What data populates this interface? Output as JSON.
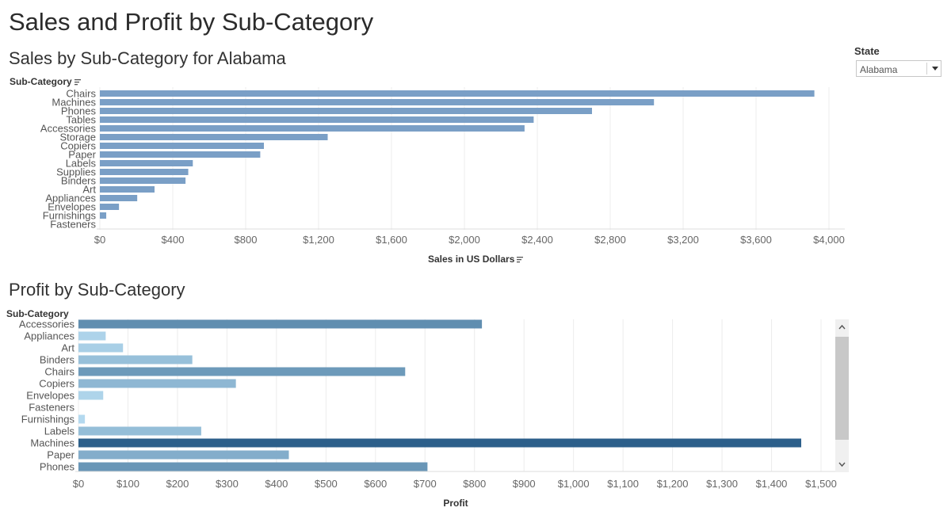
{
  "dashboard": {
    "title": "Sales and Profit by Sub-Category"
  },
  "filter": {
    "label": "State",
    "selected": "Alabama",
    "arrow_icon": "dropdown-arrow-icon"
  },
  "sales_chart": {
    "title": "Sales by Sub-Category for Alabama",
    "row_header": "Sub-Category",
    "xlabel": "Sales in US Dollars",
    "sort_icon": "sort-icon",
    "bar_color": "#7a9fc6"
  },
  "profit_chart": {
    "title": "Profit by Sub-Category",
    "row_header": "Sub-Category",
    "xlabel": "Profit",
    "colors": {
      "low": "#b7dcf1",
      "high": "#2c5f8a"
    }
  },
  "scrollbar": {
    "up_icon": "chevron-up-icon",
    "down_icon": "chevron-down-icon"
  },
  "chart_data": [
    {
      "type": "bar",
      "orientation": "horizontal",
      "title": "Sales by Sub-Category for Alabama",
      "xlabel": "Sales in US Dollars",
      "ylabel": "Sub-Category",
      "categories": [
        "Chairs",
        "Machines",
        "Phones",
        "Tables",
        "Accessories",
        "Storage",
        "Copiers",
        "Paper",
        "Labels",
        "Supplies",
        "Binders",
        "Art",
        "Appliances",
        "Envelopes",
        "Furnishings",
        "Fasteners"
      ],
      "values": [
        3920,
        3040,
        2700,
        2380,
        2330,
        1250,
        900,
        880,
        510,
        485,
        470,
        300,
        205,
        105,
        35,
        0
      ],
      "xlim": [
        0,
        4000
      ],
      "ticks": [
        0,
        400,
        800,
        1200,
        1600,
        2000,
        2400,
        2800,
        3200,
        3600,
        4000
      ],
      "tick_labels": [
        "$0",
        "$400",
        "$800",
        "$1,200",
        "$1,600",
        "$2,000",
        "$2,400",
        "$2,800",
        "$3,200",
        "$3,600",
        "$4,000"
      ],
      "grid": true,
      "legend": "none"
    },
    {
      "type": "bar",
      "orientation": "horizontal",
      "title": "Profit by Sub-Category",
      "xlabel": "Profit",
      "ylabel": "Sub-Category",
      "categories": [
        "Accessories",
        "Appliances",
        "Art",
        "Binders",
        "Chairs",
        "Copiers",
        "Envelopes",
        "Fasteners",
        "Furnishings",
        "Labels",
        "Machines",
        "Paper",
        "Phones"
      ],
      "values": [
        815,
        55,
        90,
        230,
        660,
        318,
        50,
        0,
        13,
        248,
        1460,
        425,
        705
      ],
      "xlim": [
        0,
        1500
      ],
      "ticks": [
        0,
        100,
        200,
        300,
        400,
        500,
        600,
        700,
        800,
        900,
        1000,
        1100,
        1200,
        1300,
        1400,
        1500
      ],
      "tick_labels": [
        "$0",
        "$100",
        "$200",
        "$300",
        "$400",
        "$500",
        "$600",
        "$700",
        "$800",
        "$900",
        "$1,000",
        "$1,100",
        "$1,200",
        "$1,300",
        "$1,400",
        "$1,500"
      ],
      "grid": true,
      "legend": "none",
      "color_encoding": "sequential blue by profit"
    }
  ]
}
